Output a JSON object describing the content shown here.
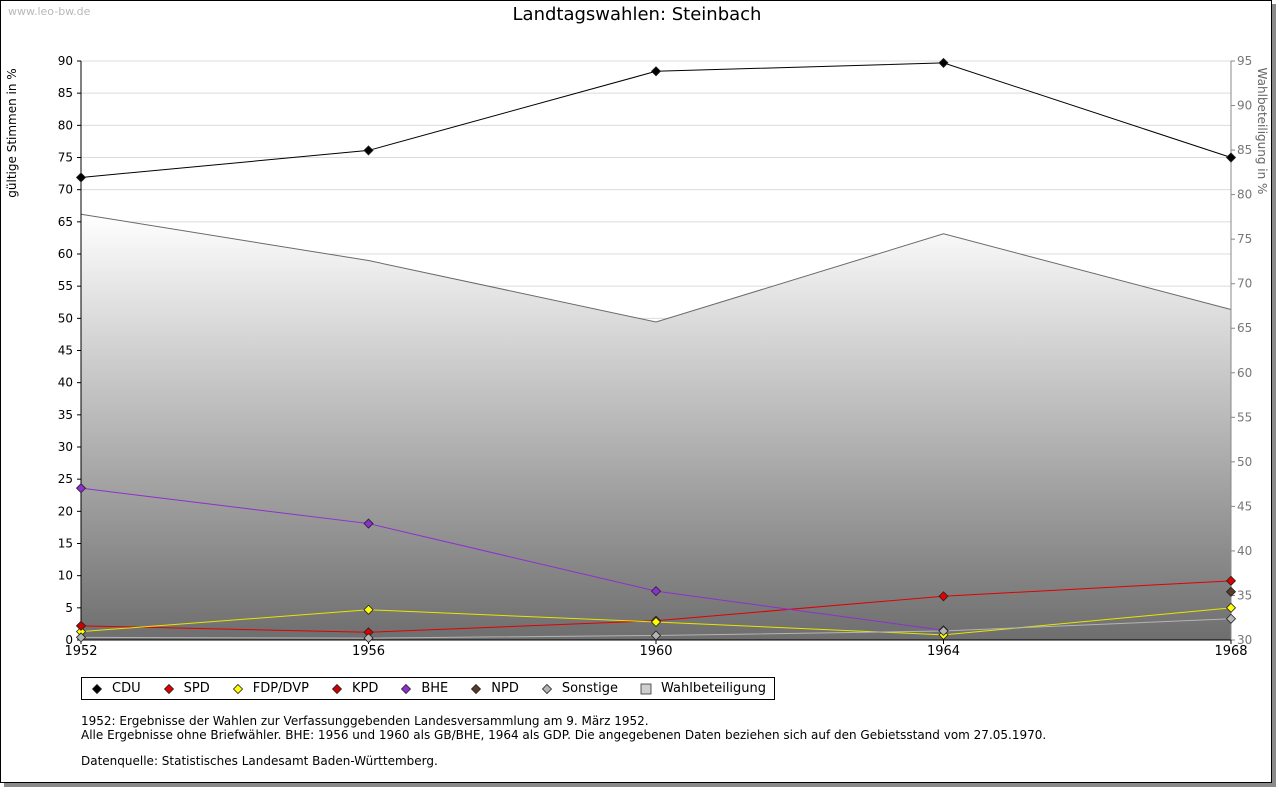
{
  "watermark": "www.leo-bw.de",
  "notes": {
    "line1": "1952: Ergebnisse der Wahlen zur Verfassunggebenden Landesversammlung am 9. März 1952.",
    "line2": "Alle Ergebnisse ohne Briefwähler. BHE: 1956 und 1960 als GB/BHE, 1964 als GDP. Die angegebenen Daten beziehen sich auf den Gebietsstand vom 27.05.1970.",
    "source": "Datenquelle: Statistisches Landesamt Baden-Württemberg."
  },
  "chart_data": {
    "type": "line",
    "title": "Landtagswahlen: Steinbach",
    "ylabel": "gültige Stimmen in %",
    "y2label": "Wahlbeteiligung in %",
    "x": [
      1952,
      1956,
      1960,
      1964,
      1968
    ],
    "ylim": [
      0,
      90
    ],
    "yticks": [
      0,
      5,
      10,
      15,
      20,
      25,
      30,
      35,
      40,
      45,
      50,
      55,
      60,
      65,
      70,
      75,
      80,
      85,
      90
    ],
    "y2lim": [
      30,
      95
    ],
    "y2ticks": [
      30,
      35,
      40,
      45,
      50,
      55,
      60,
      65,
      70,
      75,
      80,
      85,
      90,
      95
    ],
    "grid": true,
    "legend_position": "bottom",
    "series": [
      {
        "name": "CDU",
        "color": "#000000",
        "values": [
          71.9,
          76.1,
          88.4,
          89.7,
          75.0
        ]
      },
      {
        "name": "SPD",
        "color": "#e00000",
        "values": [
          2.2,
          1.2,
          3.0,
          6.8,
          9.2
        ]
      },
      {
        "name": "FDP/DVP",
        "color": "#ffff00",
        "values": [
          1.3,
          4.7,
          2.8,
          0.8,
          5.0
        ]
      },
      {
        "name": "KPD",
        "color": "#cc0000",
        "values": [
          2.2,
          null,
          null,
          null,
          null
        ]
      },
      {
        "name": "BHE",
        "color": "#8e2fd0",
        "values": [
          23.6,
          18.1,
          7.6,
          1.5,
          null
        ]
      },
      {
        "name": "NPD",
        "color": "#5a3a28",
        "values": [
          null,
          null,
          null,
          null,
          7.5
        ]
      },
      {
        "name": "Sonstige",
        "color": "#b4b4b4",
        "values": [
          0.4,
          0.3,
          0.7,
          1.4,
          3.3
        ]
      }
    ],
    "turnout": {
      "name": "Wahlbeteiligung",
      "axis": "right",
      "values": [
        77.8,
        72.6,
        65.7,
        75.6,
        67.1
      ]
    }
  }
}
